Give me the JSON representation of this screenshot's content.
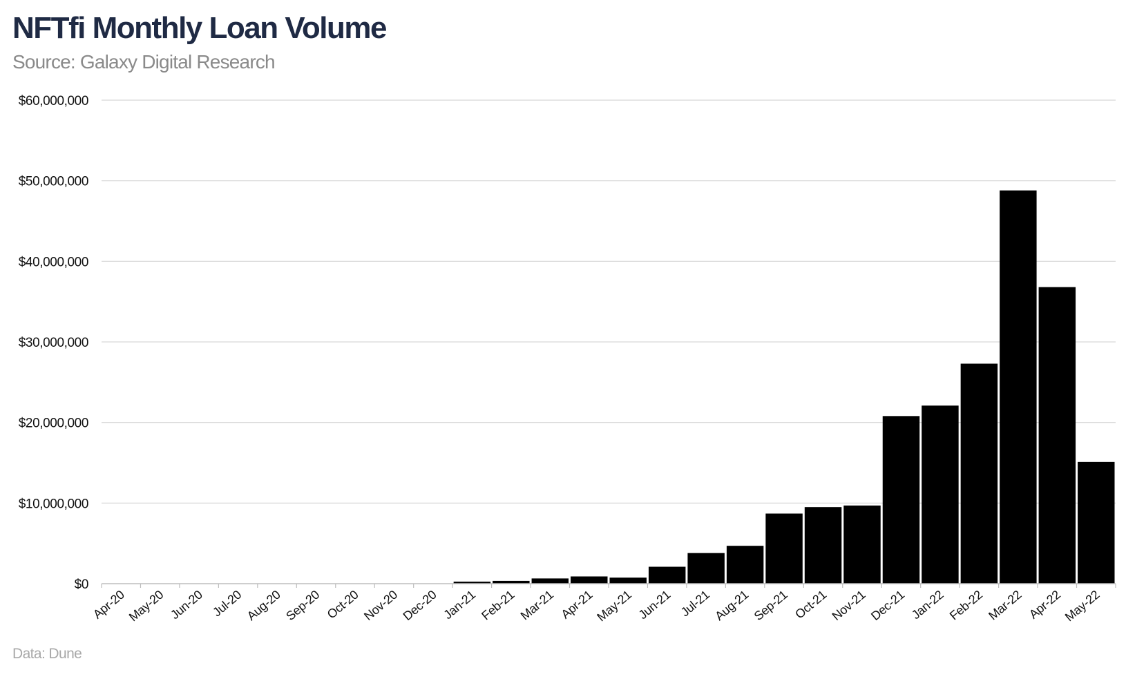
{
  "header": {
    "title": "NFTfi Monthly Loan Volume",
    "subtitle": "Source: Galaxy Digital Research"
  },
  "footer": {
    "note": "Data: Dune"
  },
  "colors": {
    "bar": "#000000",
    "grid": "#d6d6d6",
    "title": "#1f2a44",
    "subtitle": "#8a8a8a",
    "footer": "#a8a8a8"
  },
  "chart_data": {
    "type": "bar",
    "title": "NFTfi Monthly Loan Volume",
    "subtitle": "Source: Galaxy Digital Research",
    "xlabel": "",
    "ylabel": "",
    "ylim": [
      0,
      60000000
    ],
    "yticks": [
      0,
      10000000,
      20000000,
      30000000,
      40000000,
      50000000,
      60000000
    ],
    "ytick_labels": [
      "$0",
      "$10,000,000",
      "$20,000,000",
      "$30,000,000",
      "$40,000,000",
      "$50,000,000",
      "$60,000,000"
    ],
    "grid": true,
    "legend": "none",
    "categories": [
      "Apr-20",
      "May-20",
      "Jun-20",
      "Jul-20",
      "Aug-20",
      "Sep-20",
      "Oct-20",
      "Nov-20",
      "Dec-20",
      "Jan-21",
      "Feb-21",
      "Mar-21",
      "Apr-21",
      "May-21",
      "Jun-21",
      "Jul-21",
      "Aug-21",
      "Sep-21",
      "Oct-21",
      "Nov-21",
      "Dec-21",
      "Jan-22",
      "Feb-22",
      "Mar-22",
      "Apr-22",
      "May-22"
    ],
    "values": [
      0,
      0,
      0,
      0,
      0,
      0,
      0,
      0,
      0,
      250000,
      350000,
      650000,
      900000,
      750000,
      2100000,
      3800000,
      4700000,
      8700000,
      9500000,
      9700000,
      20800000,
      22100000,
      27300000,
      48800000,
      36800000,
      15100000
    ]
  }
}
